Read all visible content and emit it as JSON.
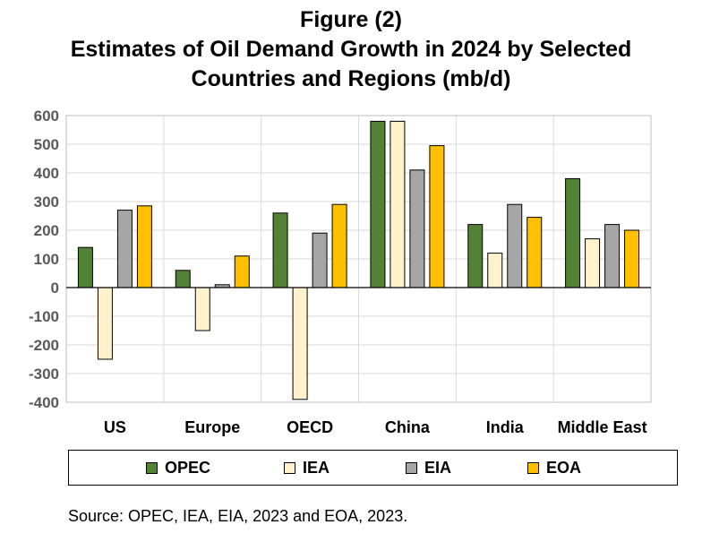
{
  "title_line1": "Figure (2)",
  "title_line2": "Estimates of Oil Demand Growth in 2024 by Selected",
  "title_line3": "Countries and Regions (mb/d)",
  "source": "Source: OPEC, IEA, EIA, 2023 and EOA, 2023.",
  "colors": {
    "OPEC": "#548235",
    "IEA": "#FFF2CC",
    "EIA": "#A6A6A6",
    "EOA": "#FFC000"
  },
  "chart_data": {
    "type": "bar",
    "categories": [
      "US",
      "Europe",
      "OECD",
      "China",
      "India",
      "Middle East"
    ],
    "series": [
      {
        "name": "OPEC",
        "values": [
          140,
          60,
          260,
          580,
          220,
          380
        ]
      },
      {
        "name": "IEA",
        "values": [
          -250,
          -150,
          -390,
          580,
          120,
          170
        ]
      },
      {
        "name": "EIA",
        "values": [
          270,
          10,
          190,
          410,
          290,
          220
        ]
      },
      {
        "name": "EOA",
        "values": [
          285,
          110,
          290,
          495,
          245,
          200
        ]
      }
    ],
    "yticks": [
      "600",
      "500",
      "400",
      "300",
      "200",
      "100",
      "0",
      "-100",
      "-200",
      "-300",
      "-400"
    ],
    "ylim": [
      -400,
      600
    ],
    "grid": true,
    "legend_position": "bottom"
  }
}
